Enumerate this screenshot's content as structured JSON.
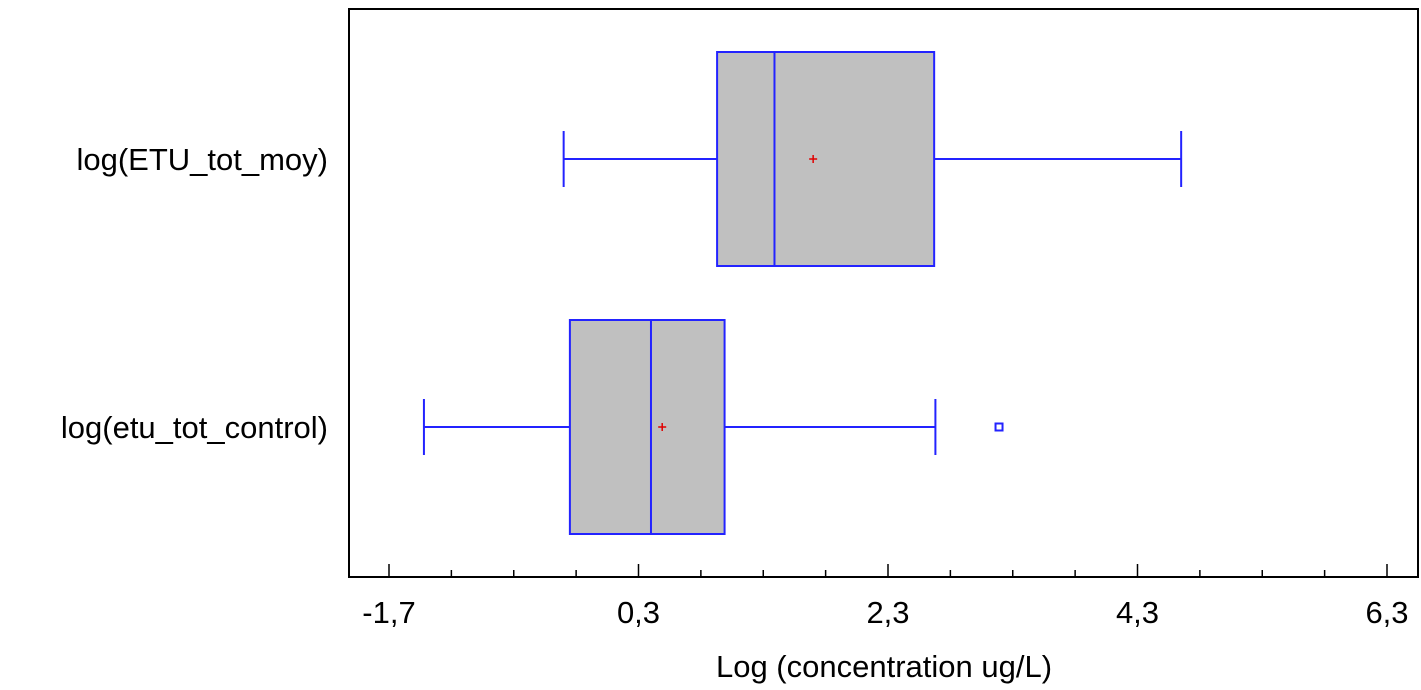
{
  "chart_data": {
    "type": "boxplot",
    "orientation": "horizontal",
    "title": "",
    "xlabel": "Log (concentration ug/L)",
    "ylabel": "",
    "xlim": [
      -1.7,
      6.3
    ],
    "x_ticks": [
      -1.7,
      0.3,
      2.3,
      4.3,
      6.3
    ],
    "x_tick_labels": [
      "-1,7",
      "0,3",
      "2,3",
      "4,3",
      "6,3"
    ],
    "x_minor_step": 0.5,
    "grid": false,
    "legend": "none",
    "colors": {
      "box_fill": "#c0c0c0",
      "box_stroke": "#2323ff",
      "mean_marker": "#e00000",
      "axis": "#000000"
    },
    "series": [
      {
        "name": "log(ETU_tot_moy)",
        "whisker_low": -0.3,
        "q1": 0.93,
        "median": 1.39,
        "q3": 2.67,
        "whisker_high": 4.65,
        "mean": 1.7,
        "outliers": []
      },
      {
        "name": "log(etu_tot_control)",
        "whisker_low": -1.42,
        "q1": -0.25,
        "median": 0.4,
        "q3": 0.99,
        "whisker_high": 2.68,
        "mean": 0.49,
        "outliers": [
          3.19
        ]
      }
    ]
  }
}
